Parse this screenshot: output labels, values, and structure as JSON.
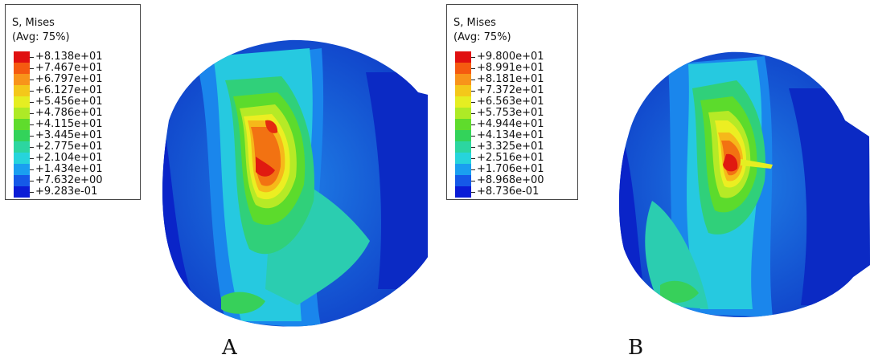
{
  "panels": [
    {
      "id": "A",
      "label": "A",
      "legend": {
        "title": "S, Mises",
        "subtitle": "(Avg: 75%)",
        "entries": [
          {
            "value": "+8.138e+01",
            "color": "#e01010"
          },
          {
            "value": "+7.467e+01",
            "color": "#f55a10"
          },
          {
            "value": "+6.797e+01",
            "color": "#f8941a"
          },
          {
            "value": "+6.127e+01",
            "color": "#f4c81a"
          },
          {
            "value": "+5.456e+01",
            "color": "#e5ee22"
          },
          {
            "value": "+4.786e+01",
            "color": "#aeea26"
          },
          {
            "value": "+4.115e+01",
            "color": "#5fdc2c"
          },
          {
            "value": "+3.445e+01",
            "color": "#33d35a"
          },
          {
            "value": "+2.775e+01",
            "color": "#2cd6a0"
          },
          {
            "value": "+2.104e+01",
            "color": "#26d4dc"
          },
          {
            "value": "+1.434e+01",
            "color": "#1a9ff0"
          },
          {
            "value": "+7.632e+00",
            "color": "#1559e8"
          },
          {
            "value": "+9.283e-01",
            "color": "#0a1cd6"
          }
        ]
      }
    },
    {
      "id": "B",
      "label": "B",
      "legend": {
        "title": "S, Mises",
        "subtitle": "(Avg: 75%)",
        "entries": [
          {
            "value": "+9.800e+01",
            "color": "#e01010"
          },
          {
            "value": "+8.991e+01",
            "color": "#f55a10"
          },
          {
            "value": "+8.181e+01",
            "color": "#f8941a"
          },
          {
            "value": "+7.372e+01",
            "color": "#f4c81a"
          },
          {
            "value": "+6.563e+01",
            "color": "#e5ee22"
          },
          {
            "value": "+5.753e+01",
            "color": "#aeea26"
          },
          {
            "value": "+4.944e+01",
            "color": "#5fdc2c"
          },
          {
            "value": "+4.134e+01",
            "color": "#33d35a"
          },
          {
            "value": "+3.325e+01",
            "color": "#2cd6a0"
          },
          {
            "value": "+2.516e+01",
            "color": "#26d4dc"
          },
          {
            "value": "+1.706e+01",
            "color": "#1a9ff0"
          },
          {
            "value": "+8.968e+00",
            "color": "#1559e8"
          },
          {
            "value": "+8.736e-01",
            "color": "#0a1cd6"
          }
        ]
      }
    }
  ]
}
